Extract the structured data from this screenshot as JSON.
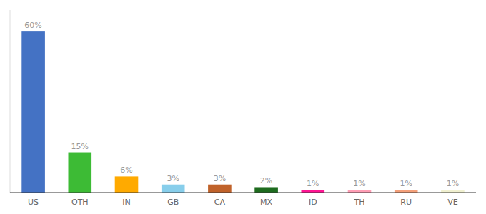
{
  "chart_data": {
    "type": "bar",
    "categories": [
      "US",
      "OTH",
      "IN",
      "GB",
      "CA",
      "MX",
      "ID",
      "TH",
      "RU",
      "VE"
    ],
    "values": [
      60,
      15,
      6,
      3,
      3,
      2,
      1,
      1,
      1,
      1
    ],
    "value_labels": [
      "60%",
      "15%",
      "6%",
      "3%",
      "3%",
      "2%",
      "1%",
      "1%",
      "1%",
      "1%"
    ],
    "colors": [
      "#4472c4",
      "#3dbb35",
      "#ffaa00",
      "#87ceeb",
      "#c0622a",
      "#1e6b1e",
      "#ff1493",
      "#ff9eb5",
      "#f4a07a",
      "#f0f0d0"
    ],
    "ylim": [
      0,
      68
    ],
    "grid": false,
    "data_labels": true,
    "tick_labels": "x"
  }
}
